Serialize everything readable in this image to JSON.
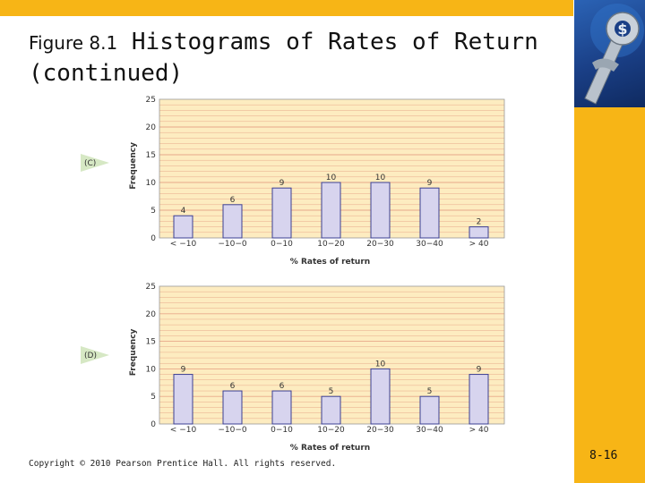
{
  "slide": {
    "title_prefix": "Figure 8.1",
    "title_main": "Histograms of Rates of Return",
    "title_cont": "(continued)",
    "copyright": "Copyright © 2010 Pearson Prentice Hall. All rights reserved.",
    "page_number": "8-16"
  },
  "colors": {
    "accent": "#f7b516",
    "plot_bg": "#fdecc0",
    "gridline": "#e8a98a",
    "bar_fill": "#d7d4ee",
    "bar_stroke": "#3b3f93",
    "marker": "#d6e8c4",
    "logo_bg": "#1a3f86"
  },
  "icons": {
    "logo": "wrench-and-dollar-icon"
  },
  "chart_data": [
    {
      "type": "bar",
      "panel_label": "(C)",
      "categories": [
        "< −10",
        "−10−0",
        "0−10",
        "10−20",
        "20−30",
        "30−40",
        "> 40"
      ],
      "values": [
        4,
        6,
        9,
        10,
        10,
        9,
        2
      ],
      "xlabel": "% Rates of return",
      "ylabel": "Frequency",
      "ylim": [
        0,
        25
      ],
      "yticks": [
        0,
        5,
        10,
        15,
        20,
        25
      ],
      "grid": true
    },
    {
      "type": "bar",
      "panel_label": "(D)",
      "categories": [
        "< −10",
        "−10−0",
        "0−10",
        "10−20",
        "20−30",
        "30−40",
        "> 40"
      ],
      "values": [
        9,
        6,
        6,
        5,
        10,
        5,
        9
      ],
      "xlabel": "% Rates of return",
      "ylabel": "Frequency",
      "ylim": [
        0,
        25
      ],
      "yticks": [
        0,
        5,
        10,
        15,
        20,
        25
      ],
      "grid": true
    }
  ]
}
